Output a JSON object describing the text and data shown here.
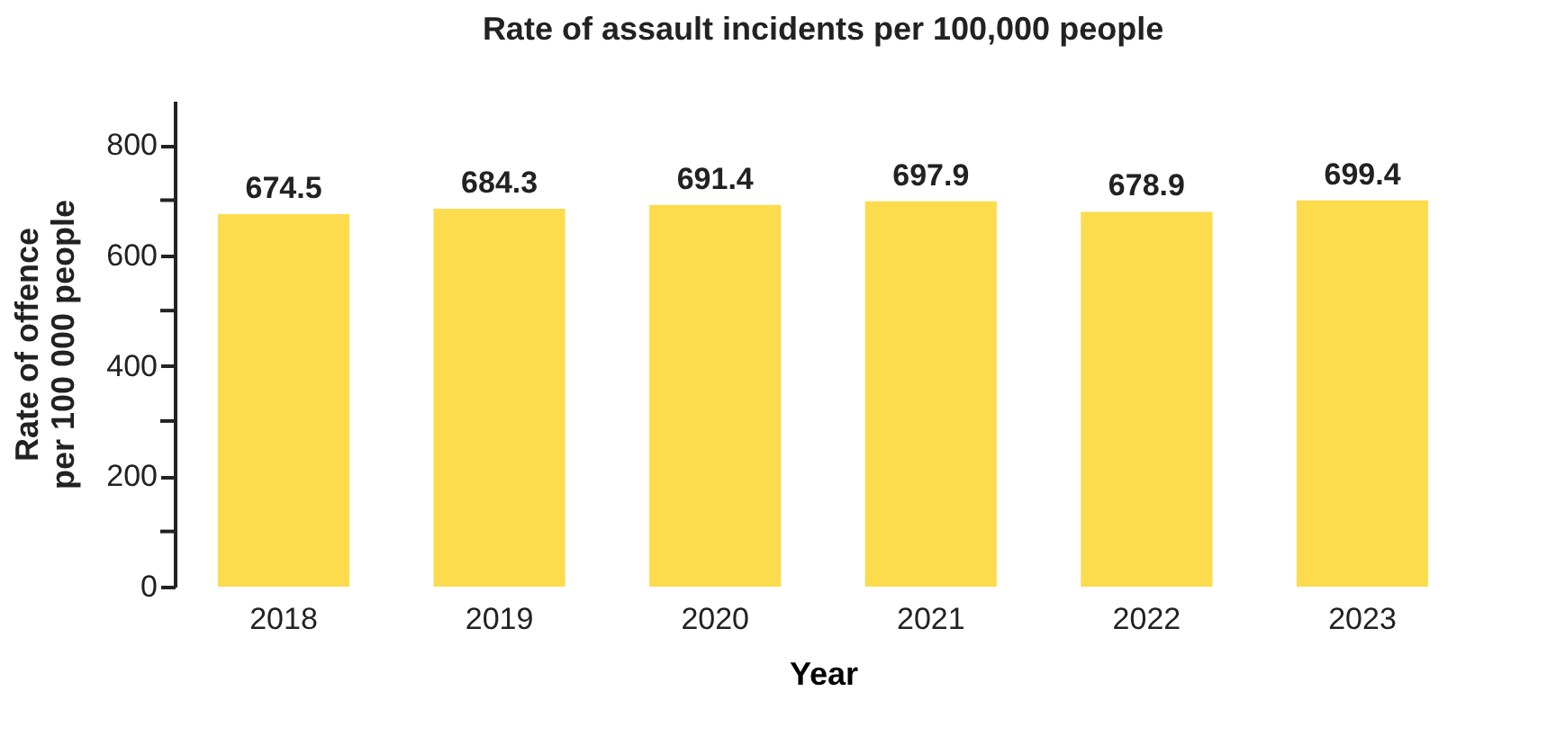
{
  "chart_data": {
    "type": "bar",
    "title": "Rate of assault incidents per 100,000 people",
    "xlabel": "Year",
    "ylabel": "Rate of offence per 100 000 people",
    "categories": [
      "2018",
      "2019",
      "2020",
      "2021",
      "2022",
      "2023"
    ],
    "values": [
      674.5,
      684.3,
      691.4,
      697.9,
      678.9,
      699.4
    ],
    "color": "#fcdc4d",
    "ylim": [
      0,
      880
    ],
    "yticks": [
      0,
      {
        "value": 100,
        "label": null
      },
      200,
      {
        "value": 300,
        "label": null
      },
      400,
      {
        "value": 500,
        "label": null
      },
      600,
      {
        "value": 700,
        "label": null
      },
      800
    ],
    "data_labels": true,
    "grid": false
  }
}
